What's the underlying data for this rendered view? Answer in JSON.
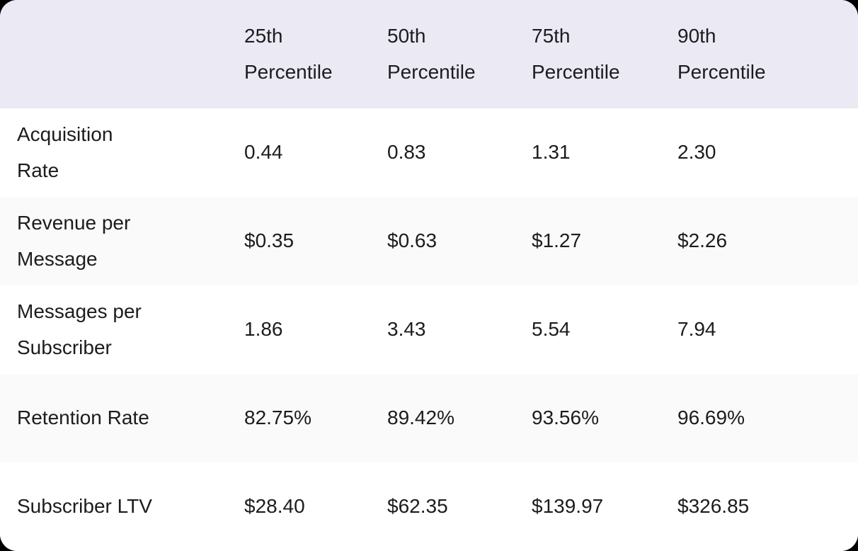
{
  "table": {
    "columns": [
      "",
      "25th\nPercentile",
      "50th\nPercentile",
      "75th\nPercentile",
      "90th\nPercentile"
    ],
    "rows": [
      {
        "label": "Acquisition\nRate",
        "values": [
          "0.44",
          "0.83",
          "1.31",
          "2.30"
        ]
      },
      {
        "label": "Revenue per\nMessage",
        "values": [
          "$0.35",
          "$0.63",
          "$1.27",
          "$2.26"
        ]
      },
      {
        "label": "Messages per\nSubscriber",
        "values": [
          "1.86",
          "3.43",
          "5.54",
          "7.94"
        ]
      },
      {
        "label": "Retention Rate",
        "values": [
          "82.75%",
          "89.42%",
          "93.56%",
          "96.69%"
        ]
      },
      {
        "label": "Subscriber LTV",
        "values": [
          "$28.40",
          "$62.35",
          "$139.97",
          "$326.85"
        ]
      }
    ],
    "colors": {
      "header_bg": "#ebeaf4",
      "header_text": "#141419",
      "body_text": "#1c1c1f",
      "row_bg": "#ffffff",
      "row_alt_bg": "#fafafb",
      "page_bg": "#000000"
    }
  }
}
